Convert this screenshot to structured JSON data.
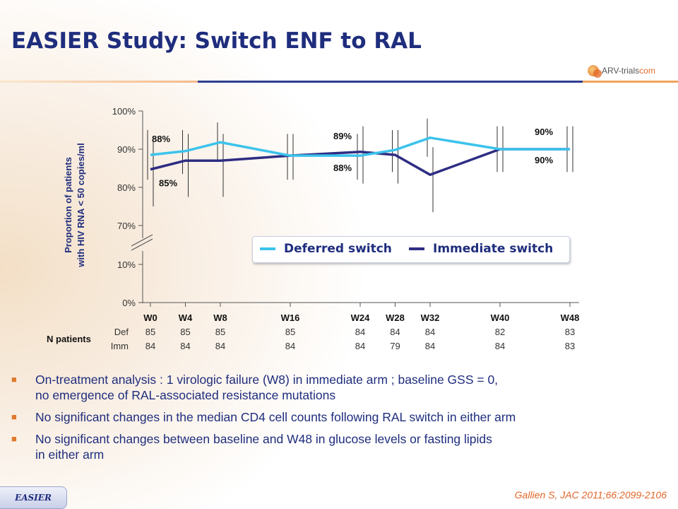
{
  "title": "EASIER Study: Switch ENF to RAL",
  "logo": {
    "prefix": "ARV-trials",
    "suffix": "com"
  },
  "chart_data": {
    "type": "line",
    "y_axis_label_lines": [
      "Proportion of patients",
      "with HIV RNA < 50 copies/ml"
    ],
    "y_ticks": [
      "100%",
      "90%",
      "80%",
      "70%",
      "10%",
      "0%"
    ],
    "y_axis_break": true,
    "x": [
      "W0",
      "W4",
      "W8",
      "W16",
      "W24",
      "W28",
      "W32",
      "W40",
      "W48"
    ],
    "x_weeks": [
      0,
      4,
      8,
      16,
      24,
      28,
      32,
      40,
      48
    ],
    "series": [
      {
        "name": "Deferred switch",
        "color": "#3cc3ec",
        "values": [
          88.5,
          89.5,
          91.8,
          88.3,
          88.3,
          89.8,
          93.0,
          90.0,
          90.0
        ],
        "ci": [
          [
            82,
            95
          ],
          [
            83.5,
            95
          ],
          [
            87,
            97
          ],
          [
            82,
            94
          ],
          [
            82,
            94
          ],
          [
            84,
            95
          ],
          [
            88,
            98
          ],
          [
            84,
            96
          ],
          [
            84,
            96
          ]
        ]
      },
      {
        "name": "Immediate switch",
        "color": "#2e2d83",
        "values": [
          84.7,
          87.0,
          87.0,
          88.3,
          89.3,
          88.5,
          83.3,
          90.0,
          90.0
        ],
        "ci": [
          [
            75,
            92
          ],
          [
            77.5,
            94
          ],
          [
            77.5,
            94
          ],
          [
            82,
            94
          ],
          [
            81,
            96
          ],
          [
            81,
            95
          ],
          [
            73.5,
            90.5
          ],
          [
            84,
            96
          ],
          [
            84,
            96
          ]
        ]
      }
    ],
    "annotations": [
      {
        "text": "88%",
        "week": 0,
        "value": 88.5
      },
      {
        "text": "85%",
        "week": 0,
        "value": 84.7
      },
      {
        "text": "89%",
        "week": 24,
        "value": 89.3
      },
      {
        "text": "88%",
        "week": 24,
        "value": 88.3
      },
      {
        "text": "90%",
        "week": 48,
        "value": 90.0
      },
      {
        "text": "90%",
        "week": 48,
        "value": 90.0
      }
    ],
    "n_patients": {
      "label": "N patients",
      "rows": [
        {
          "name": "Def",
          "values": [
            "85",
            "85",
            "85",
            "85",
            "84",
            "84",
            "84",
            "82",
            "83"
          ]
        },
        {
          "name": "Imm",
          "values": [
            "84",
            "84",
            "84",
            "84",
            "84",
            "79",
            "84",
            "84",
            "83"
          ]
        }
      ]
    }
  },
  "bullets": [
    {
      "line1": "On-treatment analysis : 1 virologic failure (W8) in immediate arm ; baseline GSS = 0,",
      "line2": "no emergence of RAL-associated resistance mutations"
    },
    {
      "line1": "No significant changes in the median CD4 cell counts following RAL switch in either arm",
      "line2": ""
    },
    {
      "line1": "No significant changes between baseline and W48 in glucose levels or fasting lipids",
      "line2": "in either arm"
    }
  ],
  "footer": {
    "tab_label": "EASIER",
    "reference": "Gallien S, JAC 2011;66:2099-2106"
  }
}
